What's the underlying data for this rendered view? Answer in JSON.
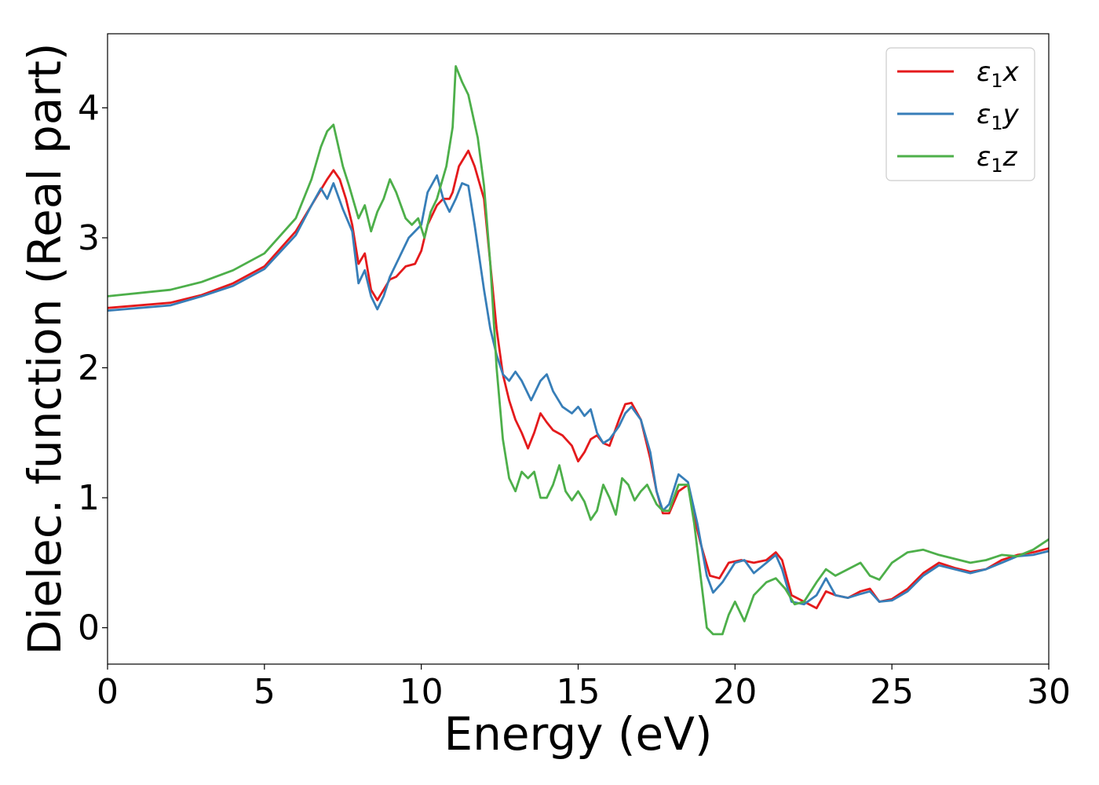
{
  "chart_data": {
    "type": "line",
    "title": "",
    "xlabel": "Energy (eV)",
    "ylabel": "Dielec. function (Real part)",
    "xlim": [
      0,
      30
    ],
    "ylim": [
      -0.28,
      4.57
    ],
    "xticks": [
      0,
      5,
      10,
      15,
      20,
      25,
      30
    ],
    "xtick_labels": [
      "0",
      "5",
      "10",
      "15",
      "20",
      "25",
      "30"
    ],
    "yticks": [
      0,
      1,
      2,
      3,
      4
    ],
    "ytick_labels": [
      "0",
      "1",
      "2",
      "3",
      "4"
    ],
    "grid": false,
    "legend": {
      "position": "top-right"
    },
    "series": [
      {
        "name": "ε₁x",
        "legend_base": "ε",
        "legend_sub": "1",
        "legend_var": "x",
        "color": "#e41a1c",
        "points": [
          [
            0,
            2.46
          ],
          [
            2,
            2.5
          ],
          [
            3,
            2.56
          ],
          [
            4,
            2.65
          ],
          [
            5,
            2.78
          ],
          [
            6,
            3.05
          ],
          [
            6.5,
            3.25
          ],
          [
            7,
            3.45
          ],
          [
            7.2,
            3.52
          ],
          [
            7.4,
            3.45
          ],
          [
            7.6,
            3.3
          ],
          [
            7.8,
            3.1
          ],
          [
            8,
            2.8
          ],
          [
            8.2,
            2.88
          ],
          [
            8.4,
            2.6
          ],
          [
            8.6,
            2.52
          ],
          [
            8.8,
            2.6
          ],
          [
            9,
            2.68
          ],
          [
            9.2,
            2.7
          ],
          [
            9.5,
            2.78
          ],
          [
            9.8,
            2.8
          ],
          [
            10,
            2.9
          ],
          [
            10.2,
            3.1
          ],
          [
            10.5,
            3.25
          ],
          [
            10.7,
            3.3
          ],
          [
            10.9,
            3.3
          ],
          [
            11,
            3.35
          ],
          [
            11.2,
            3.55
          ],
          [
            11.5,
            3.67
          ],
          [
            11.7,
            3.55
          ],
          [
            12,
            3.3
          ],
          [
            12.2,
            2.8
          ],
          [
            12.4,
            2.3
          ],
          [
            12.6,
            1.95
          ],
          [
            12.8,
            1.75
          ],
          [
            13,
            1.6
          ],
          [
            13.2,
            1.5
          ],
          [
            13.4,
            1.38
          ],
          [
            13.6,
            1.5
          ],
          [
            13.8,
            1.65
          ],
          [
            14,
            1.58
          ],
          [
            14.2,
            1.52
          ],
          [
            14.5,
            1.48
          ],
          [
            14.8,
            1.4
          ],
          [
            15,
            1.28
          ],
          [
            15.2,
            1.35
          ],
          [
            15.4,
            1.45
          ],
          [
            15.6,
            1.48
          ],
          [
            15.8,
            1.42
          ],
          [
            16,
            1.4
          ],
          [
            16.3,
            1.6
          ],
          [
            16.5,
            1.72
          ],
          [
            16.7,
            1.73
          ],
          [
            17,
            1.6
          ],
          [
            17.3,
            1.3
          ],
          [
            17.5,
            1.05
          ],
          [
            17.7,
            0.88
          ],
          [
            17.9,
            0.88
          ],
          [
            18.2,
            1.05
          ],
          [
            18.5,
            1.1
          ],
          [
            18.7,
            0.85
          ],
          [
            18.9,
            0.65
          ],
          [
            19.2,
            0.4
          ],
          [
            19.5,
            0.38
          ],
          [
            19.8,
            0.5
          ],
          [
            20.2,
            0.52
          ],
          [
            20.6,
            0.5
          ],
          [
            21,
            0.52
          ],
          [
            21.3,
            0.58
          ],
          [
            21.5,
            0.52
          ],
          [
            21.8,
            0.25
          ],
          [
            22.2,
            0.2
          ],
          [
            22.6,
            0.15
          ],
          [
            22.9,
            0.28
          ],
          [
            23.2,
            0.25
          ],
          [
            23.6,
            0.23
          ],
          [
            24,
            0.28
          ],
          [
            24.3,
            0.3
          ],
          [
            24.6,
            0.2
          ],
          [
            25,
            0.22
          ],
          [
            25.5,
            0.3
          ],
          [
            26,
            0.42
          ],
          [
            26.5,
            0.5
          ],
          [
            27,
            0.46
          ],
          [
            27.5,
            0.43
          ],
          [
            28,
            0.45
          ],
          [
            28.5,
            0.52
          ],
          [
            29,
            0.56
          ],
          [
            29.5,
            0.58
          ],
          [
            30,
            0.61
          ]
        ]
      },
      {
        "name": "ε₁y",
        "legend_base": "ε",
        "legend_sub": "1",
        "legend_var": "y",
        "color": "#377eb8",
        "points": [
          [
            0,
            2.44
          ],
          [
            2,
            2.48
          ],
          [
            3,
            2.55
          ],
          [
            4,
            2.63
          ],
          [
            5,
            2.76
          ],
          [
            6,
            3.02
          ],
          [
            6.5,
            3.25
          ],
          [
            6.8,
            3.38
          ],
          [
            7,
            3.3
          ],
          [
            7.2,
            3.42
          ],
          [
            7.5,
            3.22
          ],
          [
            7.8,
            3.05
          ],
          [
            8,
            2.65
          ],
          [
            8.2,
            2.75
          ],
          [
            8.4,
            2.55
          ],
          [
            8.6,
            2.45
          ],
          [
            8.8,
            2.55
          ],
          [
            9,
            2.7
          ],
          [
            9.3,
            2.85
          ],
          [
            9.6,
            3.0
          ],
          [
            10,
            3.1
          ],
          [
            10.2,
            3.35
          ],
          [
            10.5,
            3.48
          ],
          [
            10.7,
            3.3
          ],
          [
            10.9,
            3.2
          ],
          [
            11.1,
            3.3
          ],
          [
            11.3,
            3.42
          ],
          [
            11.5,
            3.4
          ],
          [
            11.7,
            3.1
          ],
          [
            12,
            2.6
          ],
          [
            12.2,
            2.3
          ],
          [
            12.4,
            2.1
          ],
          [
            12.6,
            1.95
          ],
          [
            12.8,
            1.9
          ],
          [
            13,
            1.97
          ],
          [
            13.2,
            1.9
          ],
          [
            13.5,
            1.75
          ],
          [
            13.8,
            1.9
          ],
          [
            14,
            1.95
          ],
          [
            14.2,
            1.82
          ],
          [
            14.5,
            1.7
          ],
          [
            14.8,
            1.65
          ],
          [
            15,
            1.7
          ],
          [
            15.2,
            1.63
          ],
          [
            15.4,
            1.68
          ],
          [
            15.6,
            1.5
          ],
          [
            15.8,
            1.42
          ],
          [
            16,
            1.45
          ],
          [
            16.3,
            1.55
          ],
          [
            16.5,
            1.65
          ],
          [
            16.7,
            1.7
          ],
          [
            17,
            1.6
          ],
          [
            17.3,
            1.35
          ],
          [
            17.5,
            1.05
          ],
          [
            17.7,
            0.9
          ],
          [
            17.9,
            0.95
          ],
          [
            18.2,
            1.18
          ],
          [
            18.5,
            1.12
          ],
          [
            18.8,
            0.8
          ],
          [
            19.1,
            0.4
          ],
          [
            19.3,
            0.27
          ],
          [
            19.6,
            0.35
          ],
          [
            20,
            0.5
          ],
          [
            20.3,
            0.52
          ],
          [
            20.6,
            0.42
          ],
          [
            21,
            0.5
          ],
          [
            21.3,
            0.56
          ],
          [
            21.5,
            0.45
          ],
          [
            21.8,
            0.2
          ],
          [
            22.2,
            0.18
          ],
          [
            22.6,
            0.25
          ],
          [
            22.9,
            0.38
          ],
          [
            23.2,
            0.25
          ],
          [
            23.6,
            0.23
          ],
          [
            24,
            0.26
          ],
          [
            24.3,
            0.28
          ],
          [
            24.6,
            0.2
          ],
          [
            25,
            0.21
          ],
          [
            25.5,
            0.28
          ],
          [
            26,
            0.4
          ],
          [
            26.5,
            0.48
          ],
          [
            27,
            0.45
          ],
          [
            27.5,
            0.42
          ],
          [
            28,
            0.45
          ],
          [
            28.5,
            0.5
          ],
          [
            29,
            0.55
          ],
          [
            29.5,
            0.56
          ],
          [
            30,
            0.59
          ]
        ]
      },
      {
        "name": "ε₁z",
        "legend_base": "ε",
        "legend_sub": "1",
        "legend_var": "z",
        "color": "#4daf4a",
        "points": [
          [
            0,
            2.55
          ],
          [
            2,
            2.6
          ],
          [
            3,
            2.66
          ],
          [
            4,
            2.75
          ],
          [
            5,
            2.88
          ],
          [
            6,
            3.15
          ],
          [
            6.5,
            3.45
          ],
          [
            6.8,
            3.7
          ],
          [
            7,
            3.82
          ],
          [
            7.2,
            3.87
          ],
          [
            7.5,
            3.55
          ],
          [
            7.7,
            3.4
          ],
          [
            8,
            3.15
          ],
          [
            8.2,
            3.25
          ],
          [
            8.4,
            3.05
          ],
          [
            8.6,
            3.2
          ],
          [
            8.8,
            3.3
          ],
          [
            9,
            3.45
          ],
          [
            9.2,
            3.35
          ],
          [
            9.5,
            3.15
          ],
          [
            9.7,
            3.1
          ],
          [
            9.9,
            3.15
          ],
          [
            10.1,
            3.0
          ],
          [
            10.3,
            3.2
          ],
          [
            10.5,
            3.3
          ],
          [
            10.8,
            3.55
          ],
          [
            11,
            3.85
          ],
          [
            11.1,
            4.32
          ],
          [
            11.3,
            4.2
          ],
          [
            11.5,
            4.1
          ],
          [
            11.8,
            3.77
          ],
          [
            12,
            3.4
          ],
          [
            12.2,
            2.8
          ],
          [
            12.4,
            2.0
          ],
          [
            12.6,
            1.45
          ],
          [
            12.8,
            1.15
          ],
          [
            13,
            1.05
          ],
          [
            13.2,
            1.2
          ],
          [
            13.4,
            1.15
          ],
          [
            13.6,
            1.2
          ],
          [
            13.8,
            1.0
          ],
          [
            14,
            1.0
          ],
          [
            14.2,
            1.1
          ],
          [
            14.4,
            1.25
          ],
          [
            14.6,
            1.05
          ],
          [
            14.8,
            0.98
          ],
          [
            15,
            1.05
          ],
          [
            15.2,
            0.97
          ],
          [
            15.4,
            0.83
          ],
          [
            15.6,
            0.9
          ],
          [
            15.8,
            1.1
          ],
          [
            16,
            1.0
          ],
          [
            16.2,
            0.87
          ],
          [
            16.4,
            1.15
          ],
          [
            16.6,
            1.1
          ],
          [
            16.8,
            0.98
          ],
          [
            17,
            1.05
          ],
          [
            17.2,
            1.1
          ],
          [
            17.5,
            0.95
          ],
          [
            17.7,
            0.9
          ],
          [
            17.9,
            0.9
          ],
          [
            18.2,
            1.1
          ],
          [
            18.5,
            1.1
          ],
          [
            18.7,
            0.8
          ],
          [
            18.9,
            0.4
          ],
          [
            19.1,
            0.0
          ],
          [
            19.3,
            -0.05
          ],
          [
            19.6,
            -0.05
          ],
          [
            19.8,
            0.1
          ],
          [
            20,
            0.2
          ],
          [
            20.3,
            0.05
          ],
          [
            20.6,
            0.25
          ],
          [
            21,
            0.35
          ],
          [
            21.3,
            0.38
          ],
          [
            21.6,
            0.3
          ],
          [
            21.9,
            0.18
          ],
          [
            22.2,
            0.2
          ],
          [
            22.6,
            0.35
          ],
          [
            22.9,
            0.45
          ],
          [
            23.2,
            0.4
          ],
          [
            23.6,
            0.45
          ],
          [
            24,
            0.5
          ],
          [
            24.3,
            0.4
          ],
          [
            24.6,
            0.37
          ],
          [
            25,
            0.5
          ],
          [
            25.5,
            0.58
          ],
          [
            26,
            0.6
          ],
          [
            26.5,
            0.56
          ],
          [
            27,
            0.53
          ],
          [
            27.5,
            0.5
          ],
          [
            28,
            0.52
          ],
          [
            28.5,
            0.56
          ],
          [
            29,
            0.55
          ],
          [
            29.5,
            0.6
          ],
          [
            30,
            0.68
          ]
        ]
      }
    ]
  }
}
